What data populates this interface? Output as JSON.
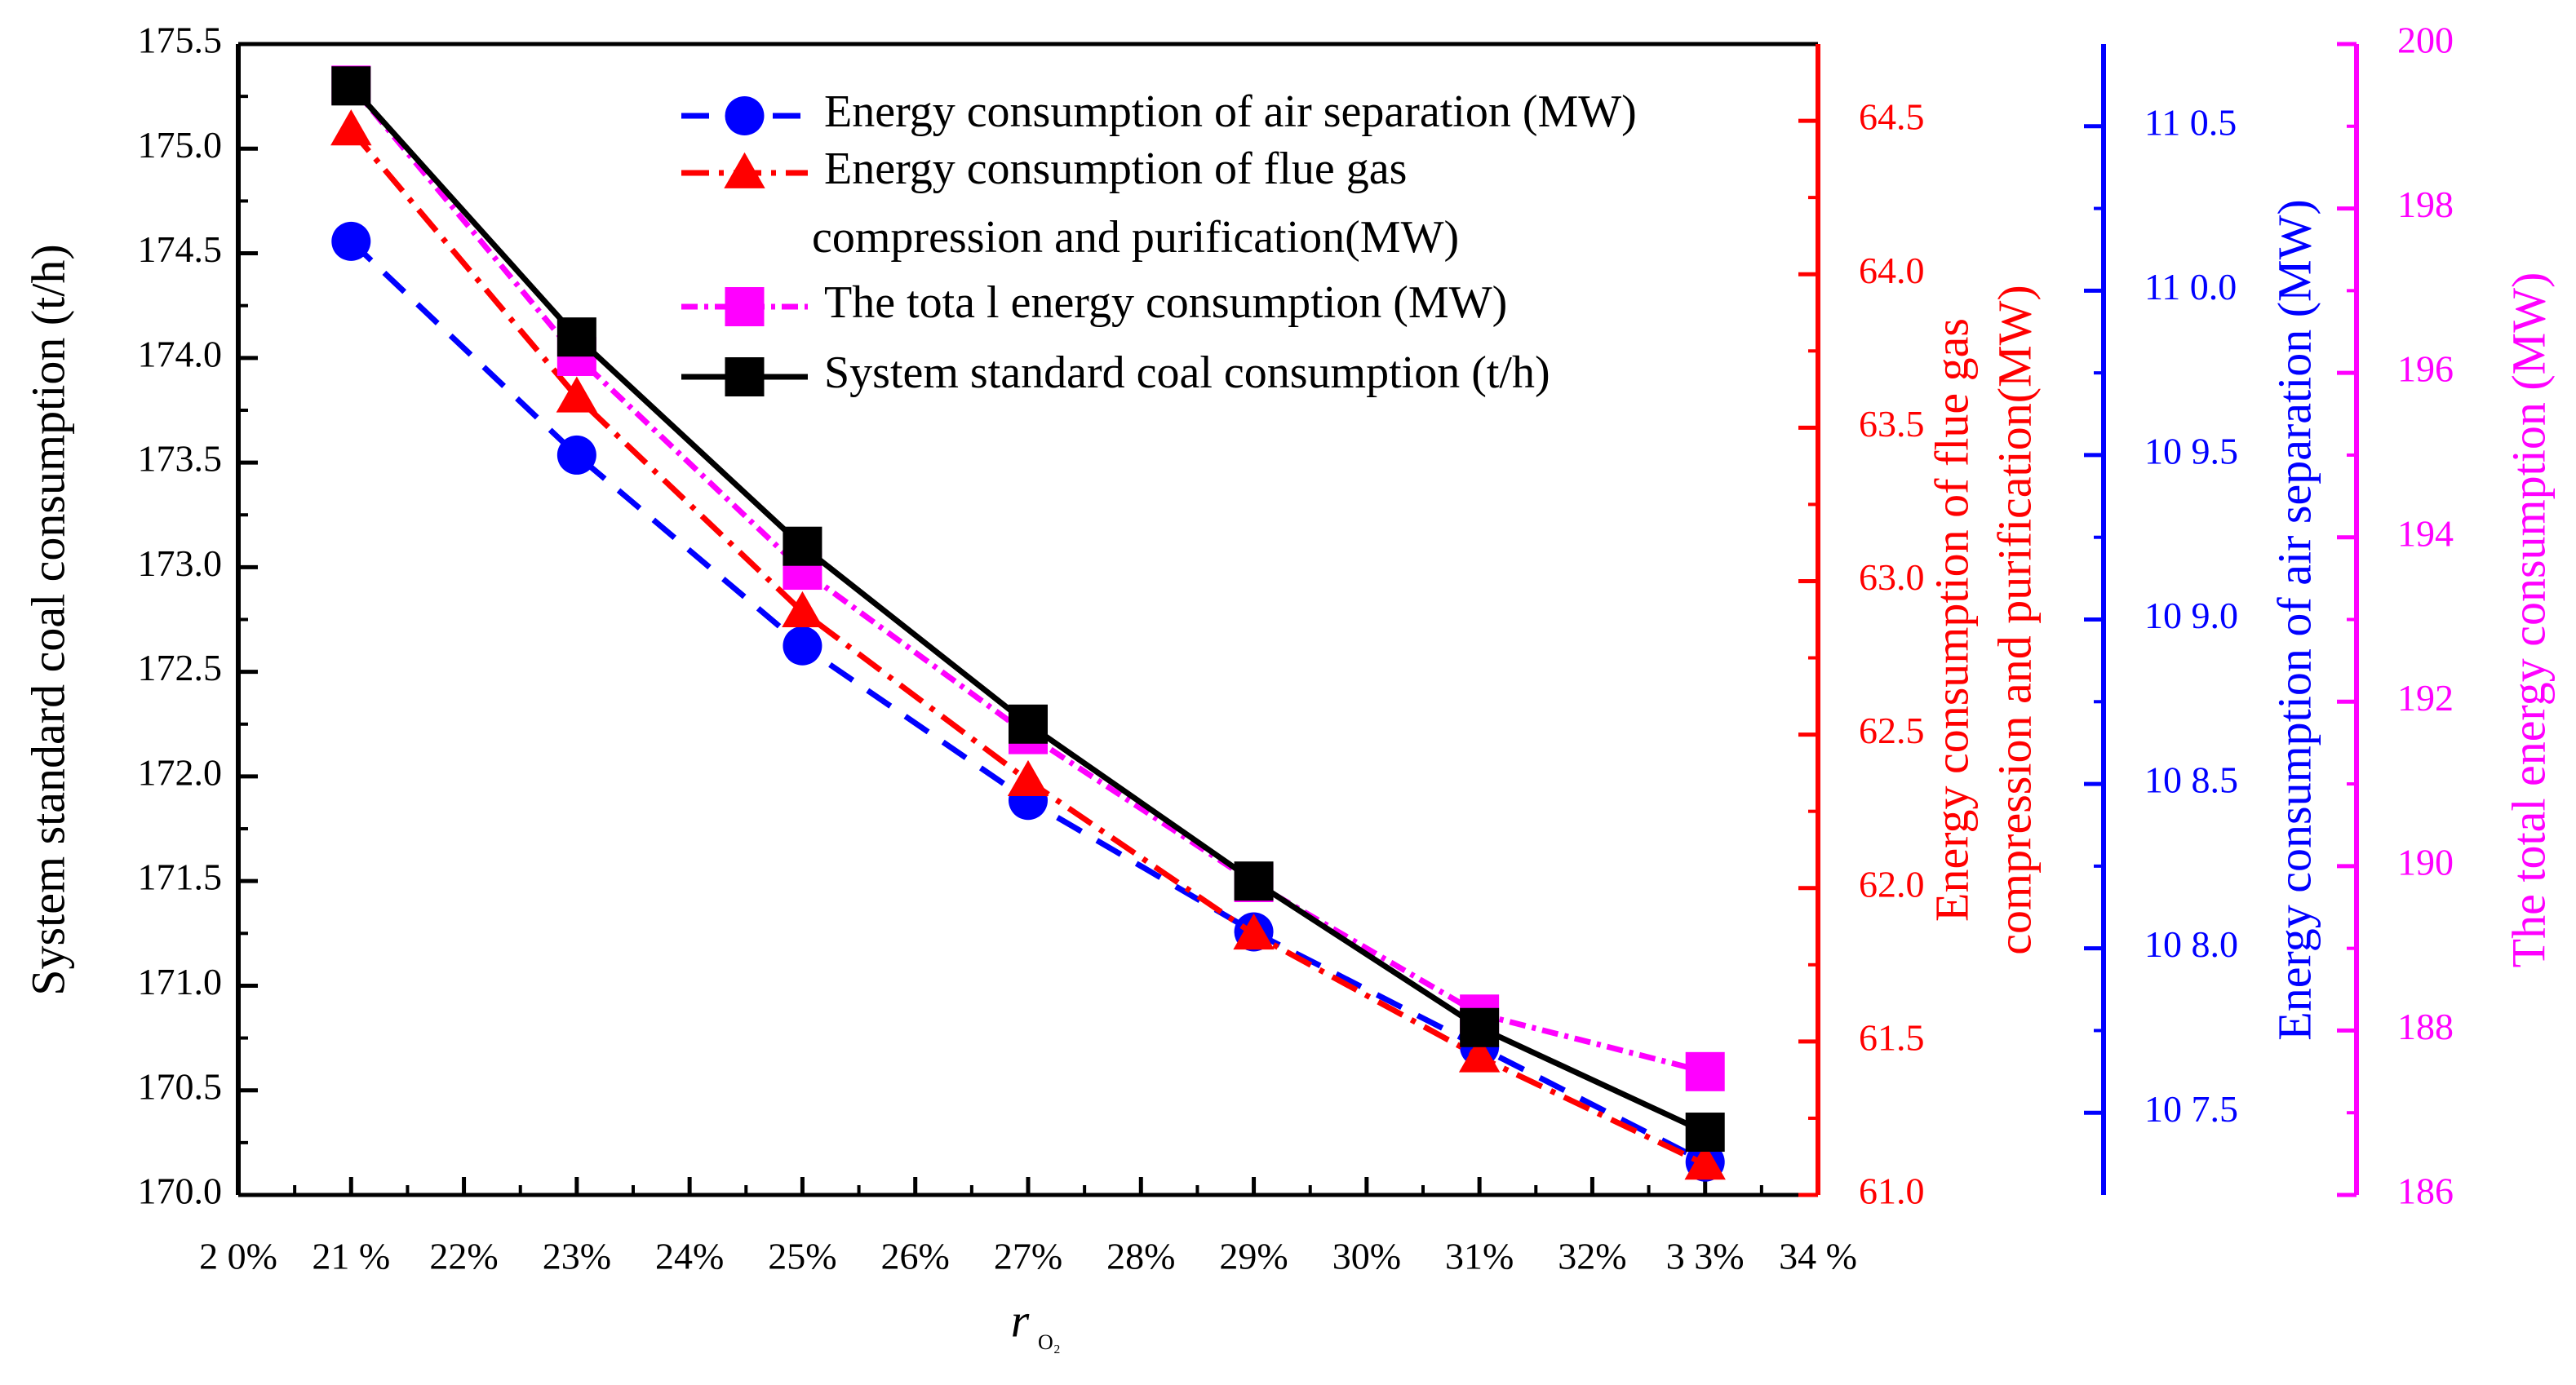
{
  "chart_data": {
    "type": "line",
    "x_label": "r",
    "x_label_subscript": "O₂",
    "x_categories": [
      "20%",
      "21%",
      "22%",
      "23%",
      "24%",
      "25%",
      "26%",
      "27%",
      "28%",
      "29%",
      "30%",
      "31%",
      "32%",
      "33%",
      "34%"
    ],
    "x_tick_labels": [
      "2 0%",
      "21 %",
      "22%",
      "23%",
      "24%",
      "25%",
      "26%",
      "27%",
      "28%",
      "29%",
      "30%",
      "31%",
      "32%",
      "3 3%",
      "34 %"
    ],
    "axes": [
      {
        "id": "coal",
        "side": "left",
        "title": "System standard coal consumption (t/h)",
        "color": "#000000",
        "min": 170.0,
        "max": 175.5,
        "step": 0.5,
        "tick_labels": [
          "170.0",
          "170.5",
          "171.0",
          "171.5",
          "172.0",
          "172.5",
          "173.0",
          "173.5",
          "174.0",
          "174.5",
          "175.0",
          "175.5"
        ]
      },
      {
        "id": "fgc",
        "side": "right",
        "title_lines": [
          "Energy consumption of flue gas",
          "compression and purification(MW)"
        ],
        "color": "#ff0000",
        "min": 61.0,
        "max": 64.75,
        "step": 0.5,
        "tick_labels": [
          "61.0",
          "61.5",
          "62.0",
          "62.5",
          "63.0",
          "63.5",
          "64.0",
          "64.5"
        ]
      },
      {
        "id": "air",
        "side": "right",
        "title": "Energy consumption of air separation (MW)",
        "color": "#0000ff",
        "min": 107.25,
        "max": 110.75,
        "step": 0.5,
        "tick_labels": [
          "10 7.5",
          "10 8.0",
          "10 8.5",
          "10 9.0",
          "10 9.5",
          "11 0.0",
          "11 0.5"
        ]
      },
      {
        "id": "total",
        "side": "right",
        "title": "The total energy consumption (MW)",
        "color": "#ff00ff",
        "min": 186,
        "max": 200,
        "step": 2,
        "tick_labels": [
          "186",
          "188",
          "190",
          "192",
          "194",
          "196",
          "198",
          "200"
        ]
      }
    ],
    "series": [
      {
        "name": "Energy consumption of air separation (MW)",
        "axis": "air",
        "color": "#0000ff",
        "dash": "34 22",
        "marker": "circle",
        "x": [
          21,
          23,
          25,
          27,
          29,
          31,
          33
        ],
        "y": [
          110.15,
          109.5,
          108.92,
          108.45,
          108.05,
          107.7,
          107.35
        ]
      },
      {
        "name": "Energy consumption of flue gas compression and purification(MW)",
        "axis": "fgc",
        "color": "#ff0000",
        "dash": "34 12 6 12",
        "marker": "triangle",
        "x": [
          21,
          23,
          25,
          27,
          29,
          31,
          33
        ],
        "y": [
          64.47,
          63.6,
          62.9,
          62.35,
          61.85,
          61.45,
          61.1
        ],
        "legend_lines": [
          "Energy consumption of flue gas",
          "compression and purification(MW)"
        ]
      },
      {
        "name": "The total energy consumption (MW)",
        "axis": "total",
        "color": "#ff00ff",
        "dash": "20 8 5 8",
        "marker": "square",
        "x": [
          21,
          23,
          25,
          27,
          29,
          31,
          33
        ],
        "y": [
          199.5,
          196.2,
          193.6,
          191.6,
          189.8,
          188.2,
          187.5
        ]
      },
      {
        "name": "System standard coal consumption (t/h)",
        "axis": "coal",
        "color": "#000000",
        "dash": "",
        "marker": "square",
        "x": [
          21,
          23,
          25,
          27,
          29,
          31,
          33
        ],
        "y": [
          175.3,
          174.1,
          173.1,
          172.25,
          171.5,
          170.8,
          170.3
        ]
      }
    ],
    "legend": [
      {
        "label": "Energy consumption of air separation (MW)"
      },
      {
        "label": "Energy consumption of flue gas"
      },
      {
        "label": "compression and purification(MW)"
      },
      {
        "label": "The tota l energy consumption (MW)"
      },
      {
        "label": "System standard coal consumption (t/h)"
      }
    ]
  }
}
